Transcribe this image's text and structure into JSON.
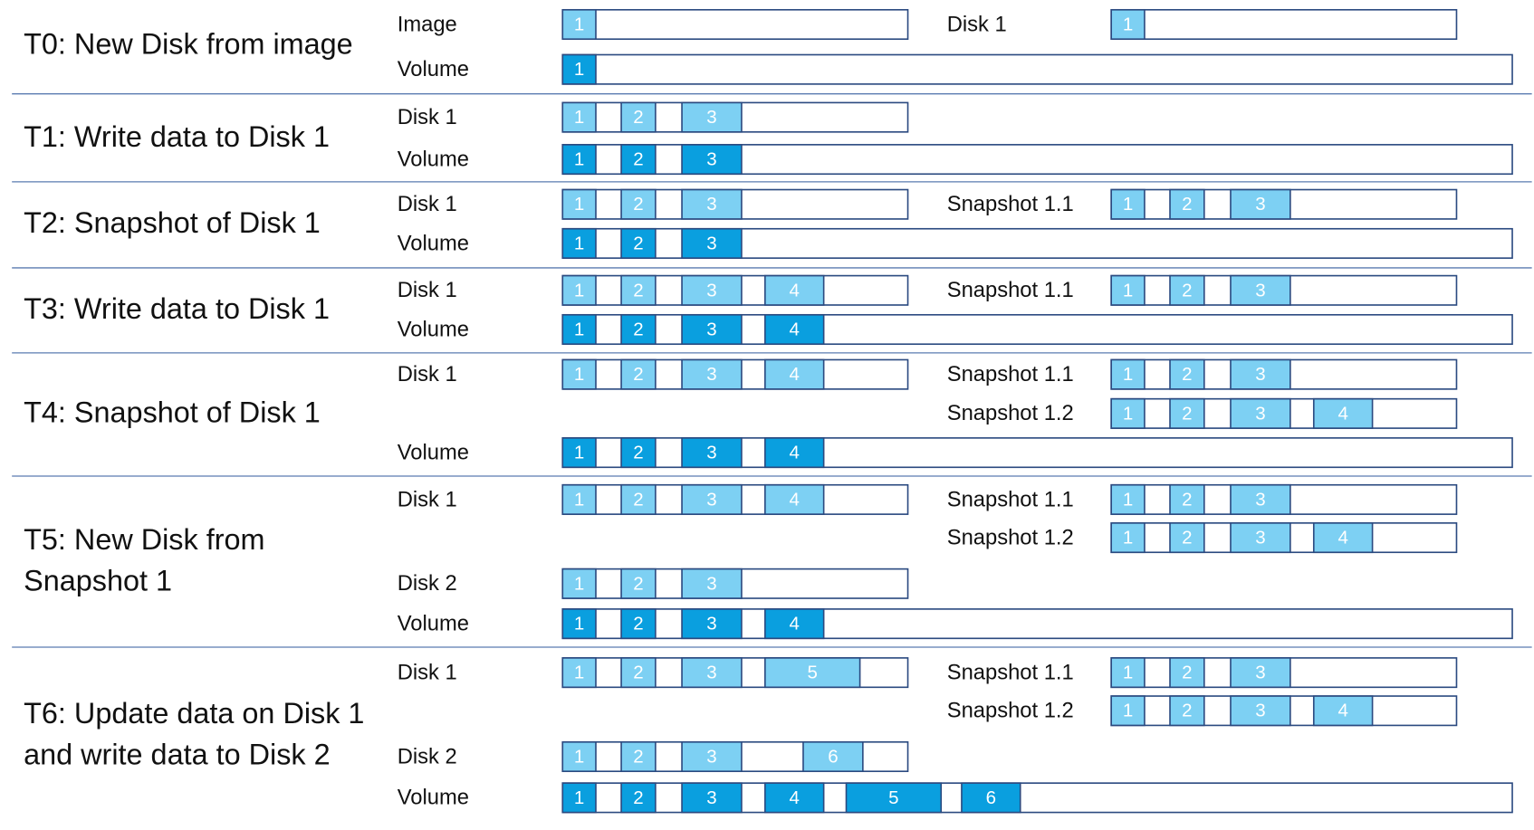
{
  "stages": [
    {
      "title_lines": [
        "T0: New Disk from image"
      ],
      "lanes": [
        {
          "label": "Image",
          "blocks": [
            "1"
          ]
        },
        {
          "label": "Disk 1",
          "blocks": [
            "1"
          ]
        },
        {
          "label": "Volume",
          "blocks": [
            "1"
          ]
        }
      ]
    },
    {
      "title_lines": [
        "T1: Write data to Disk 1"
      ],
      "lanes": [
        {
          "label": "Disk 1",
          "blocks": [
            "1",
            "2",
            "3"
          ]
        },
        {
          "label": "Volume",
          "blocks": [
            "1",
            "2",
            "3"
          ]
        }
      ]
    },
    {
      "title_lines": [
        "T2: Snapshot of Disk 1"
      ],
      "lanes": [
        {
          "label": "Disk 1",
          "blocks": [
            "1",
            "2",
            "3"
          ]
        },
        {
          "label": "Snapshot 1.1",
          "blocks": [
            "1",
            "2",
            "3"
          ]
        },
        {
          "label": "Volume",
          "blocks": [
            "1",
            "2",
            "3"
          ]
        }
      ]
    },
    {
      "title_lines": [
        "T3: Write data to Disk 1"
      ],
      "lanes": [
        {
          "label": "Disk 1",
          "blocks": [
            "1",
            "2",
            "3",
            "4"
          ]
        },
        {
          "label": "Snapshot 1.1",
          "blocks": [
            "1",
            "2",
            "3"
          ]
        },
        {
          "label": "Volume",
          "blocks": [
            "1",
            "2",
            "3",
            "4"
          ]
        }
      ]
    },
    {
      "title_lines": [
        "T4: Snapshot of Disk 1"
      ],
      "lanes": [
        {
          "label": "Disk 1",
          "blocks": [
            "1",
            "2",
            "3",
            "4"
          ]
        },
        {
          "label": "Snapshot 1.1",
          "blocks": [
            "1",
            "2",
            "3"
          ]
        },
        {
          "label": "Snapshot 1.2",
          "blocks": [
            "1",
            "2",
            "3",
            "4"
          ]
        },
        {
          "label": "Volume",
          "blocks": [
            "1",
            "2",
            "3",
            "4"
          ]
        }
      ]
    },
    {
      "title_lines": [
        "T5: New Disk from",
        "Snapshot 1"
      ],
      "lanes": [
        {
          "label": "Disk 1",
          "blocks": [
            "1",
            "2",
            "3",
            "4"
          ]
        },
        {
          "label": "Snapshot 1.1",
          "blocks": [
            "1",
            "2",
            "3"
          ]
        },
        {
          "label": "Snapshot 1.2",
          "blocks": [
            "1",
            "2",
            "3",
            "4"
          ]
        },
        {
          "label": "Disk 2",
          "blocks": [
            "1",
            "2",
            "3"
          ]
        },
        {
          "label": "Volume",
          "blocks": [
            "1",
            "2",
            "3",
            "4"
          ]
        }
      ]
    },
    {
      "title_lines": [
        "T6: Update data on Disk 1",
        "and write data to Disk 2"
      ],
      "lanes": [
        {
          "label": "Disk 1",
          "blocks": [
            "1",
            "2",
            "3",
            "5"
          ]
        },
        {
          "label": "Snapshot 1.1",
          "blocks": [
            "1",
            "2",
            "3"
          ]
        },
        {
          "label": "Snapshot 1.2",
          "blocks": [
            "1",
            "2",
            "3",
            "4"
          ]
        },
        {
          "label": "Disk 2",
          "blocks": [
            "1",
            "2",
            "3",
            "6"
          ]
        },
        {
          "label": "Volume",
          "blocks": [
            "1",
            "2",
            "3",
            "4",
            "5",
            "6"
          ]
        }
      ]
    }
  ]
}
